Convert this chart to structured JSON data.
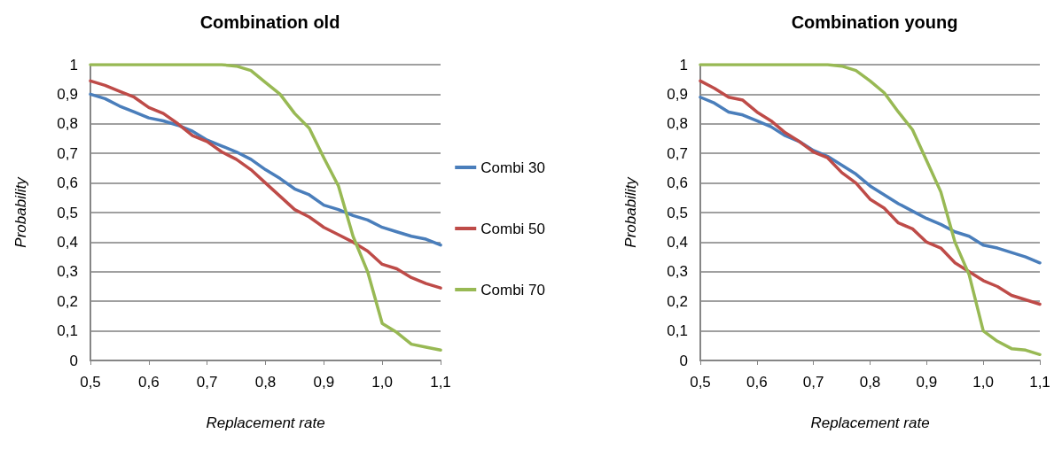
{
  "chart_data": [
    {
      "type": "line",
      "title": "Combination old",
      "xlabel": "Replacement rate",
      "ylabel": "Probability",
      "x": [
        0.5,
        0.525,
        0.55,
        0.575,
        0.6,
        0.625,
        0.65,
        0.675,
        0.7,
        0.725,
        0.75,
        0.775,
        0.8,
        0.825,
        0.85,
        0.875,
        0.9,
        0.925,
        0.95,
        0.975,
        1.0,
        1.025,
        1.05,
        1.075,
        1.1
      ],
      "series": [
        {
          "name": "Combi 30",
          "color": "#4a7ebb",
          "values": [
            0.9,
            0.885,
            0.86,
            0.84,
            0.82,
            0.81,
            0.795,
            0.775,
            0.745,
            0.725,
            0.705,
            0.68,
            0.645,
            0.615,
            0.58,
            0.56,
            0.525,
            0.51,
            0.49,
            0.475,
            0.45,
            0.435,
            0.42,
            0.41,
            0.39
          ]
        },
        {
          "name": "Combi 50",
          "color": "#be4b48",
          "values": [
            0.945,
            0.93,
            0.91,
            0.89,
            0.855,
            0.835,
            0.8,
            0.76,
            0.74,
            0.705,
            0.68,
            0.645,
            0.6,
            0.555,
            0.51,
            0.485,
            0.45,
            0.425,
            0.4,
            0.37,
            0.325,
            0.31,
            0.28,
            0.26,
            0.245
          ]
        },
        {
          "name": "Combi 70",
          "color": "#98b954",
          "values": [
            1,
            1,
            1,
            1,
            1,
            1,
            1,
            1,
            1,
            1,
            0.995,
            0.98,
            0.94,
            0.9,
            0.835,
            0.785,
            0.685,
            0.59,
            0.42,
            0.3,
            0.125,
            0.095,
            0.055,
            0.045,
            0.035
          ]
        }
      ],
      "xlim": [
        0.5,
        1.1
      ],
      "xticks": [
        {
          "value": 0.5,
          "label": "0,5"
        },
        {
          "value": 0.6,
          "label": "0,6"
        },
        {
          "value": 0.7,
          "label": "0,7"
        },
        {
          "value": 0.8,
          "label": "0,8"
        },
        {
          "value": 0.9,
          "label": "0,9"
        },
        {
          "value": 1.0,
          "label": "1,0"
        },
        {
          "value": 1.1,
          "label": "1,1"
        }
      ],
      "ylim": [
        0,
        1
      ],
      "yticks": [
        {
          "value": 0,
          "label": "0"
        },
        {
          "value": 0.1,
          "label": "0,1"
        },
        {
          "value": 0.2,
          "label": "0,2"
        },
        {
          "value": 0.3,
          "label": "0,3"
        },
        {
          "value": 0.4,
          "label": "0,4"
        },
        {
          "value": 0.5,
          "label": "0,5"
        },
        {
          "value": 0.6,
          "label": "0,6"
        },
        {
          "value": 0.7,
          "label": "0,7"
        },
        {
          "value": 0.8,
          "label": "0,8"
        },
        {
          "value": 0.9,
          "label": "0,9"
        },
        {
          "value": 1,
          "label": "1"
        }
      ],
      "grid": "y",
      "legend": "right",
      "marker": "none",
      "line_style": "solid"
    },
    {
      "type": "line",
      "title": "Combination young",
      "xlabel": "Replacement rate",
      "ylabel": "Probability",
      "x": [
        0.5,
        0.525,
        0.55,
        0.575,
        0.6,
        0.625,
        0.65,
        0.675,
        0.7,
        0.725,
        0.75,
        0.775,
        0.8,
        0.825,
        0.85,
        0.875,
        0.9,
        0.925,
        0.95,
        0.975,
        1.0,
        1.025,
        1.05,
        1.075,
        1.1
      ],
      "series": [
        {
          "color": "#4a7ebb",
          "values": [
            0.89,
            0.87,
            0.84,
            0.83,
            0.81,
            0.79,
            0.76,
            0.74,
            0.71,
            0.69,
            0.66,
            0.63,
            0.59,
            0.56,
            0.53,
            0.505,
            0.48,
            0.46,
            0.435,
            0.42,
            0.39,
            0.38,
            0.365,
            0.35,
            0.33
          ]
        },
        {
          "color": "#be4b48",
          "values": [
            0.945,
            0.92,
            0.89,
            0.88,
            0.84,
            0.81,
            0.77,
            0.74,
            0.705,
            0.685,
            0.635,
            0.6,
            0.545,
            0.515,
            0.465,
            0.445,
            0.4,
            0.38,
            0.33,
            0.3,
            0.27,
            0.25,
            0.22,
            0.205,
            0.19
          ]
        },
        {
          "color": "#98b954",
          "values": [
            1,
            1,
            1,
            1,
            1,
            1,
            1,
            1,
            1,
            1,
            0.995,
            0.98,
            0.945,
            0.905,
            0.84,
            0.78,
            0.675,
            0.57,
            0.4,
            0.29,
            0.1,
            0.065,
            0.04,
            0.035,
            0.02
          ]
        }
      ],
      "xlim": [
        0.5,
        1.1
      ],
      "xticks": [
        {
          "value": 0.5,
          "label": "0,5"
        },
        {
          "value": 0.6,
          "label": "0,6"
        },
        {
          "value": 0.7,
          "label": "0,7"
        },
        {
          "value": 0.8,
          "label": "0,8"
        },
        {
          "value": 0.9,
          "label": "0,9"
        },
        {
          "value": 1.0,
          "label": "1,0"
        },
        {
          "value": 1.1,
          "label": "1,1"
        }
      ],
      "ylim": [
        0,
        1
      ],
      "yticks": [
        {
          "value": 0,
          "label": "0"
        },
        {
          "value": 0.1,
          "label": "0,1"
        },
        {
          "value": 0.2,
          "label": "0,2"
        },
        {
          "value": 0.3,
          "label": "0,3"
        },
        {
          "value": 0.4,
          "label": "0,4"
        },
        {
          "value": 0.5,
          "label": "0,5"
        },
        {
          "value": 0.6,
          "label": "0,6"
        },
        {
          "value": 0.7,
          "label": "0,7"
        },
        {
          "value": 0.8,
          "label": "0,8"
        },
        {
          "value": 0.9,
          "label": "0,9"
        },
        {
          "value": 1,
          "label": "1"
        }
      ],
      "grid": "y",
      "legend": false,
      "marker": "none",
      "line_style": "solid"
    }
  ]
}
